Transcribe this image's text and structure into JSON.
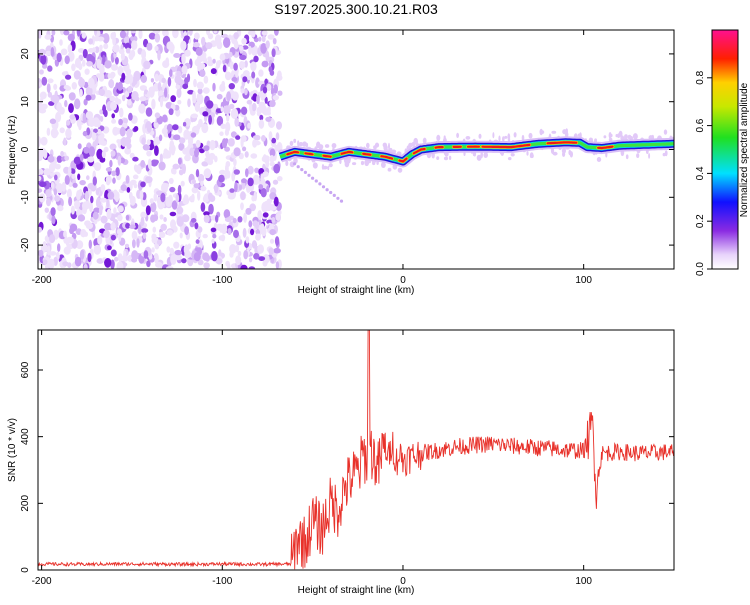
{
  "title": "S197.2025.300.10.21.R03",
  "chart_data": [
    {
      "type": "heatmap",
      "xlabel": "Height of straight line (km)",
      "ylabel": "Frequency (Hz)",
      "xlim": [
        -202,
        150
      ],
      "ylim": [
        -25,
        25
      ],
      "xticks": [
        -200,
        -100,
        0,
        100
      ],
      "yticks": [
        -20,
        -10,
        0,
        10,
        20
      ],
      "noise_region_x": [
        -202,
        -68
      ],
      "ridge_track": [
        [
          -68,
          -1.5
        ],
        [
          -60,
          -0.5
        ],
        [
          -50,
          -1.0
        ],
        [
          -40,
          -1.5
        ],
        [
          -30,
          -0.5
        ],
        [
          -20,
          -1.0
        ],
        [
          -10,
          -1.5
        ],
        [
          -5,
          -2.0
        ],
        [
          0,
          -2.5
        ],
        [
          5,
          -1.0
        ],
        [
          10,
          0
        ],
        [
          20,
          0.5
        ],
        [
          40,
          0.6
        ],
        [
          60,
          0.5
        ],
        [
          75,
          1.2
        ],
        [
          90,
          1.5
        ],
        [
          98,
          1.4
        ],
        [
          102,
          0.5
        ],
        [
          110,
          0.3
        ],
        [
          120,
          0.8
        ],
        [
          150,
          1.2
        ]
      ],
      "colorbar": {
        "label": "Normalized spectral amplitude",
        "range": [
          0.0,
          1.0
        ],
        "ticks": [
          "0.0",
          "0.2",
          "0.4",
          "0.6",
          "0.8"
        ],
        "tick_values": [
          0.0,
          0.2,
          0.4,
          0.6,
          0.8
        ]
      }
    },
    {
      "type": "line",
      "xlabel": "Height of straight line (km)",
      "ylabel": "SNR (10 * v/v)",
      "xlim": [
        -202,
        150
      ],
      "ylim": [
        0,
        720
      ],
      "xticks": [
        -200,
        -100,
        0,
        100
      ],
      "yticks": [
        0,
        200,
        400,
        600
      ],
      "color": "#e8312a",
      "series": [
        {
          "name": "SNR",
          "x": [
            -202,
            -180,
            -160,
            -140,
            -120,
            -100,
            -80,
            -62,
            -58,
            -54,
            -50,
            -45,
            -40,
            -36,
            -32,
            -28,
            -24,
            -22,
            -20,
            -18,
            -16,
            -14,
            -12,
            -10,
            -8,
            -6,
            -4,
            -2,
            0,
            5,
            10,
            15,
            20,
            30,
            40,
            50,
            60,
            70,
            80,
            90,
            100,
            103,
            105,
            107,
            110,
            120,
            130,
            140,
            150
          ],
          "values": [
            18,
            17,
            18,
            18,
            17,
            18,
            17,
            18,
            100,
            80,
            150,
            120,
            200,
            180,
            250,
            280,
            300,
            350,
            330,
            360,
            340,
            300,
            340,
            380,
            330,
            390,
            320,
            350,
            330,
            340,
            350,
            355,
            360,
            370,
            375,
            378,
            372,
            368,
            365,
            360,
            358,
            390,
            440,
            250,
            350,
            355,
            350,
            352,
            355
          ]
        }
      ],
      "spike": {
        "x": -19,
        "value": 720
      }
    }
  ]
}
